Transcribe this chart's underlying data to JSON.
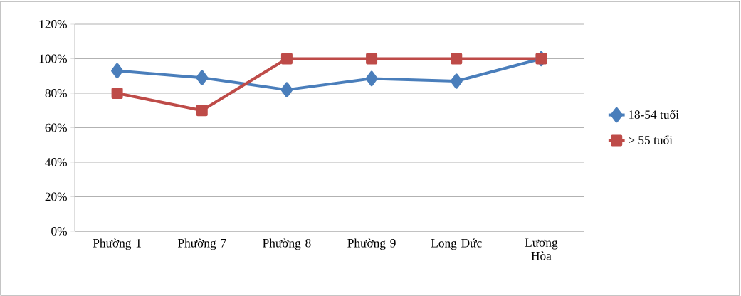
{
  "chart_data": {
    "type": "line",
    "categories": [
      "Phường 1",
      "Phường 7",
      "Phường 8",
      "Phường 9",
      "Long Đức",
      "Lương Hòa"
    ],
    "series": [
      {
        "name": "18-54  tuổi",
        "color": "#4a7ebb",
        "marker": "diamond",
        "values": [
          93,
          89,
          82,
          88.5,
          87,
          100
        ]
      },
      {
        "name": "> 55 tuổi",
        "color": "#be4b48",
        "marker": "square",
        "values": [
          80,
          70,
          100,
          100,
          100,
          100
        ]
      }
    ],
    "ylim": [
      0,
      120
    ],
    "yticks": [
      {
        "value": 0,
        "label": "0%"
      },
      {
        "value": 20,
        "label": "20%"
      },
      {
        "value": 40,
        "label": "40%"
      },
      {
        "value": 60,
        "label": "60%"
      },
      {
        "value": 80,
        "label": "80%"
      },
      {
        "value": 100,
        "label": "100%"
      },
      {
        "value": 120,
        "label": "120%"
      }
    ],
    "grid": "y",
    "legend": "right",
    "line_style": "solid"
  }
}
